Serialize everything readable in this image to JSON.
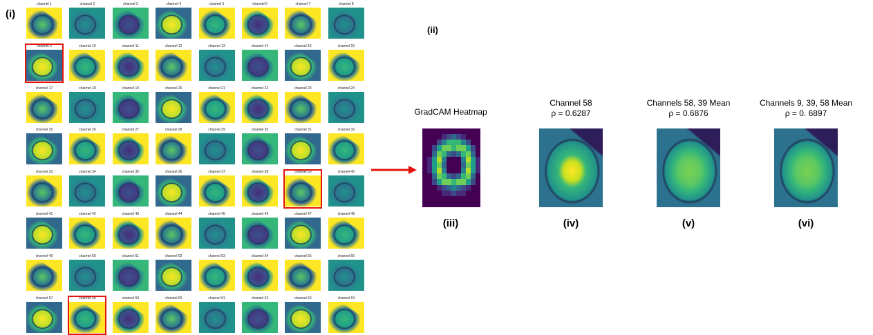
{
  "panel_i": {
    "label": "(i)",
    "channels": [
      {
        "label": "channel 1"
      },
      {
        "label": "channel 2"
      },
      {
        "label": "channel 3"
      },
      {
        "label": "channel 4"
      },
      {
        "label": "channel 5"
      },
      {
        "label": "channel 6"
      },
      {
        "label": "channel 7"
      },
      {
        "label": "channel 8"
      },
      {
        "label": "channel 9",
        "highlighted": true
      },
      {
        "label": "channel 10"
      },
      {
        "label": "channel 11"
      },
      {
        "label": "channel 12"
      },
      {
        "label": "channel 13"
      },
      {
        "label": "channel 14"
      },
      {
        "label": "channel 15"
      },
      {
        "label": "channel 16"
      },
      {
        "label": "channel 17"
      },
      {
        "label": "channel 18"
      },
      {
        "label": "channel 19"
      },
      {
        "label": "channel 20"
      },
      {
        "label": "channel 21"
      },
      {
        "label": "channel 22"
      },
      {
        "label": "channel 23"
      },
      {
        "label": "channel 24"
      },
      {
        "label": "channel 25"
      },
      {
        "label": "channel 26"
      },
      {
        "label": "channel 27"
      },
      {
        "label": "channel 28"
      },
      {
        "label": "channel 29"
      },
      {
        "label": "channel 30"
      },
      {
        "label": "channel 31"
      },
      {
        "label": "channel 32"
      },
      {
        "label": "channel 33"
      },
      {
        "label": "channel 34"
      },
      {
        "label": "channel 35"
      },
      {
        "label": "channel 36"
      },
      {
        "label": "channel 37"
      },
      {
        "label": "channel 38"
      },
      {
        "label": "channel 39",
        "highlighted": true
      },
      {
        "label": "channel 40"
      },
      {
        "label": "channel 41"
      },
      {
        "label": "channel 42"
      },
      {
        "label": "channel 43"
      },
      {
        "label": "channel 44"
      },
      {
        "label": "channel 45"
      },
      {
        "label": "channel 46"
      },
      {
        "label": "channel 47"
      },
      {
        "label": "channel 48"
      },
      {
        "label": "channel 49"
      },
      {
        "label": "channel 50"
      },
      {
        "label": "channel 51"
      },
      {
        "label": "channel 52"
      },
      {
        "label": "channel 53"
      },
      {
        "label": "channel 54"
      },
      {
        "label": "channel 55"
      },
      {
        "label": "channel 56"
      },
      {
        "label": "channel 57"
      },
      {
        "label": "channel 58",
        "highlighted": true
      },
      {
        "label": "channel 59"
      },
      {
        "label": "channel 60"
      },
      {
        "label": "channel 61"
      },
      {
        "label": "channel 62"
      },
      {
        "label": "channel 63"
      },
      {
        "label": "channel 64"
      }
    ]
  },
  "panel_ii": {
    "label": "(ii)",
    "panels": [
      {
        "title_lines": [
          "GradCAM Heatmap"
        ],
        "label": "(iii)"
      },
      {
        "title_lines": [
          "Channel 58",
          "ρ = 0.6287"
        ],
        "label": "(iv)"
      },
      {
        "title_lines": [
          "Channels 58, 39 Mean",
          "ρ = 0.6876"
        ],
        "label": "(v)"
      },
      {
        "title_lines": [
          "Channels 9, 39, 58 Mean",
          "ρ = 0. 6897"
        ],
        "label": "(vi)"
      }
    ]
  }
}
